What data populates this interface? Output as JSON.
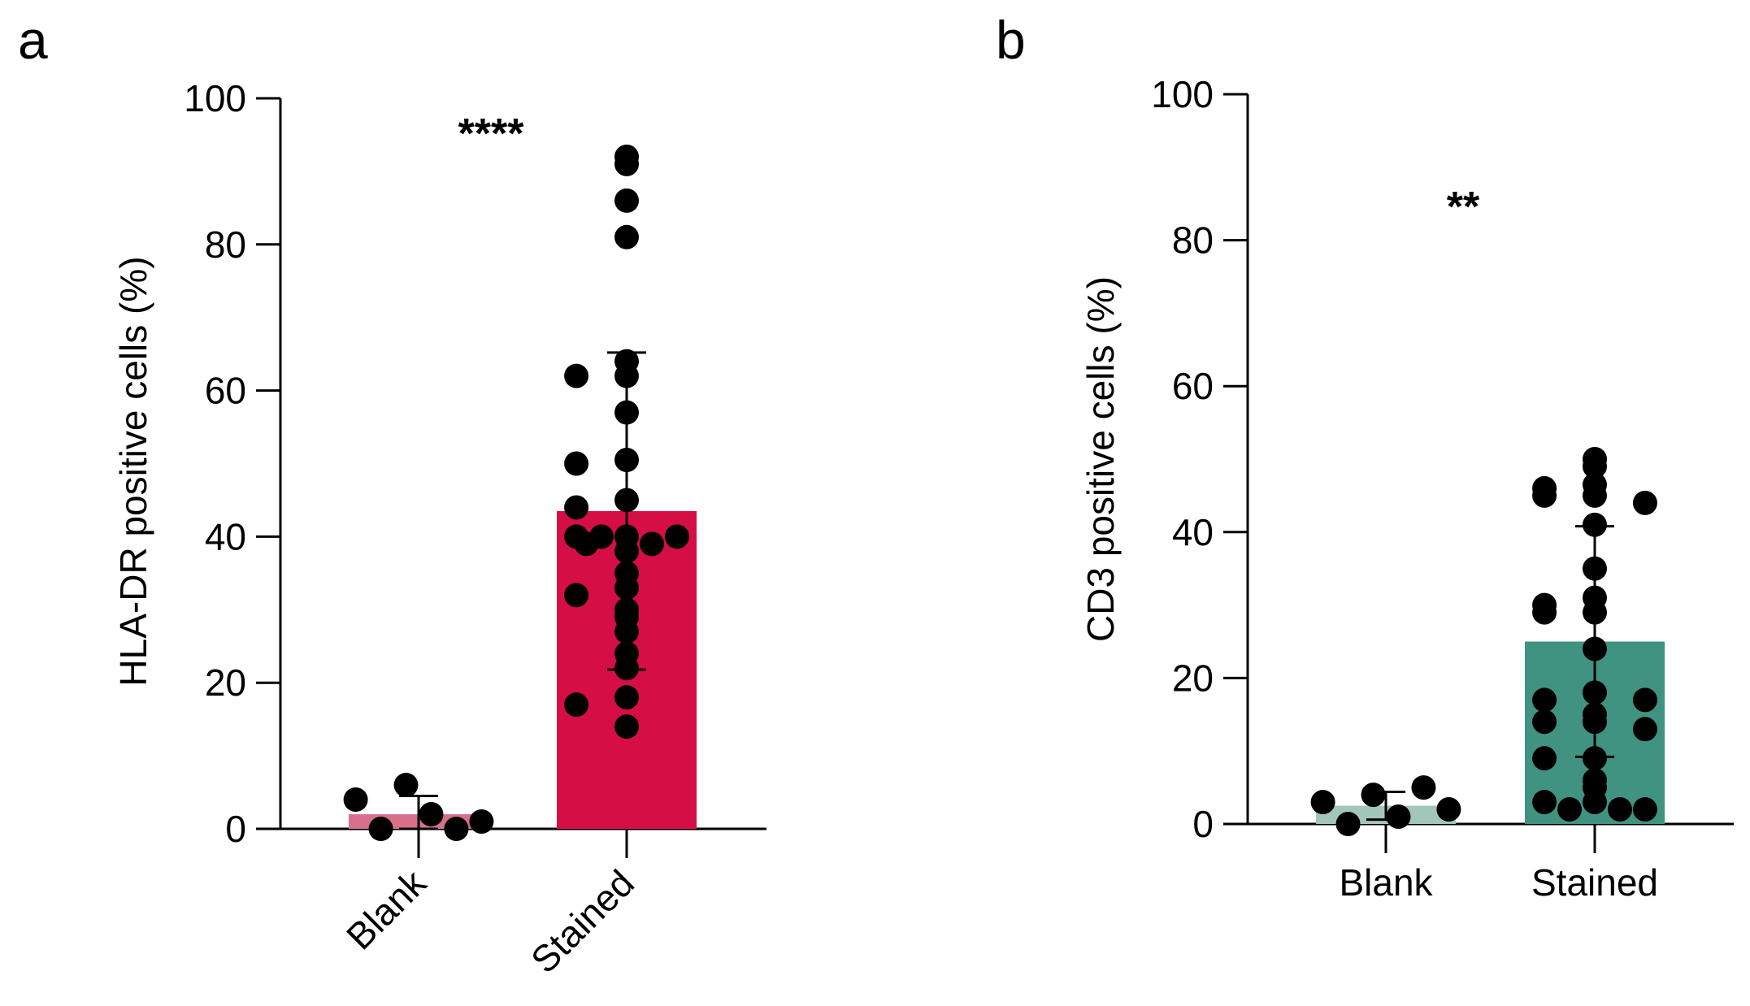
{
  "chart_data": [
    {
      "panel": "a",
      "type": "bar",
      "ylabel": "HLA-DR positive cells (%)",
      "xlabel": "",
      "ylim": [
        0,
        100
      ],
      "yticks": [
        "0",
        "20",
        "40",
        "60",
        "80",
        "100"
      ],
      "category_label_rotation": "rotated 45 degrees",
      "significance": "****",
      "categories": [
        "Blank",
        "Stained"
      ],
      "series": [
        {
          "name": "Blank",
          "mean": 2,
          "error_low": 0,
          "error_high": 4.5,
          "color": "#D9708A",
          "points": [
            4,
            0,
            6,
            2,
            0,
            1
          ]
        },
        {
          "name": "Stained",
          "mean": 43.5,
          "error_low": 21.8,
          "error_high": 65.2,
          "color": "#D50E45",
          "points": [
            92,
            91,
            86,
            81,
            64,
            62,
            62,
            57,
            50.5,
            50,
            45,
            44,
            40,
            40,
            40,
            40,
            39,
            39,
            38,
            35,
            33,
            32,
            30,
            29,
            27,
            24,
            22,
            18,
            17,
            14
          ]
        }
      ]
    },
    {
      "panel": "b",
      "type": "bar",
      "ylabel": "CD3 positive cells (%)",
      "xlabel": "",
      "ylim": [
        0,
        100
      ],
      "yticks": [
        "0",
        "20",
        "40",
        "60",
        "80",
        "100"
      ],
      "category_label_rotation": "horizontal",
      "significance": "**",
      "categories": [
        "Blank",
        "Stained"
      ],
      "series": [
        {
          "name": "Blank",
          "mean": 2.5,
          "error_low": 0.6,
          "error_high": 4.4,
          "color": "#A3C6BC",
          "points": [
            3,
            0,
            4,
            1,
            5,
            2
          ]
        },
        {
          "name": "Stained",
          "mean": 25,
          "error_low": 9.2,
          "error_high": 40.8,
          "color": "#409380",
          "points": [
            50,
            49,
            46.5,
            46,
            45,
            45,
            44,
            41,
            35,
            31,
            30,
            29,
            29,
            24,
            18,
            17,
            17,
            15,
            14,
            14,
            13,
            9,
            9,
            6,
            5,
            3,
            3,
            2,
            2,
            2
          ]
        }
      ]
    }
  ]
}
